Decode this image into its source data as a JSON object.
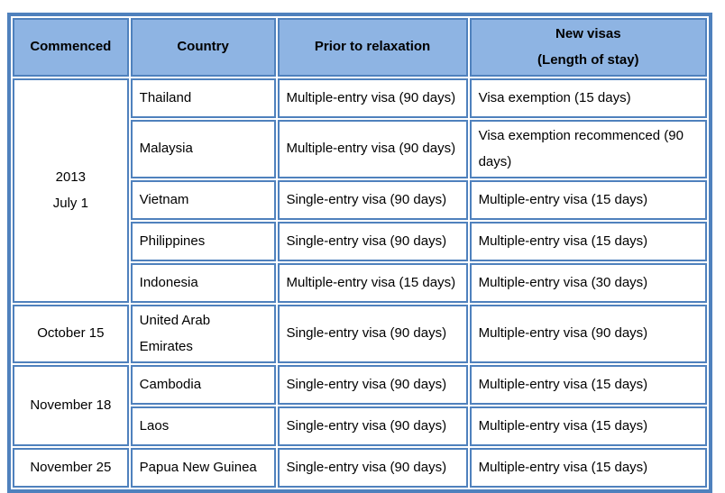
{
  "colors": {
    "border": "#4F81BD",
    "header_bg": "#8EB4E3",
    "text": "#000000",
    "page_bg": "#FFFFFF"
  },
  "table": {
    "header": {
      "commenced": "Commenced",
      "country": "Country",
      "prior": "Prior to relaxation",
      "new_visas_line1": "New visas",
      "new_visas_line2": "(Length of stay)"
    },
    "groups": [
      {
        "commenced_line1": "2013",
        "commenced_line2": "July 1",
        "rows": [
          {
            "country": "Thailand",
            "prior": "Multiple-entry visa (90 days)",
            "new": "Visa exemption (15 days)"
          },
          {
            "country": "Malaysia",
            "prior": "Multiple-entry visa (90 days)",
            "new": "Visa exemption recommenced (90 days)"
          },
          {
            "country": "Vietnam",
            "prior": "Single-entry visa (90 days)",
            "new": "Multiple-entry visa (15 days)"
          },
          {
            "country": "Philippines",
            "prior": "Single-entry visa (90 days)",
            "new": "Multiple-entry visa (15 days)"
          },
          {
            "country": "Indonesia",
            "prior": "Multiple-entry visa (15 days)",
            "new": "Multiple-entry visa (30 days)"
          }
        ]
      },
      {
        "commenced": "October 15",
        "rows": [
          {
            "country": "United Arab Emirates",
            "prior": "Single-entry visa (90 days)",
            "new": "Multiple-entry visa (90 days)"
          }
        ]
      },
      {
        "commenced": "November 18",
        "rows": [
          {
            "country": "Cambodia",
            "prior": "Single-entry visa (90 days)",
            "new": "Multiple-entry visa (15 days)"
          },
          {
            "country": "Laos",
            "prior": "Single-entry visa (90 days)",
            "new": "Multiple-entry visa (15 days)"
          }
        ]
      },
      {
        "commenced": "November 25",
        "rows": [
          {
            "country": "Papua New Guinea",
            "prior": "Single-entry visa (90 days)",
            "new": "Multiple-entry visa (15 days)"
          }
        ]
      }
    ]
  }
}
